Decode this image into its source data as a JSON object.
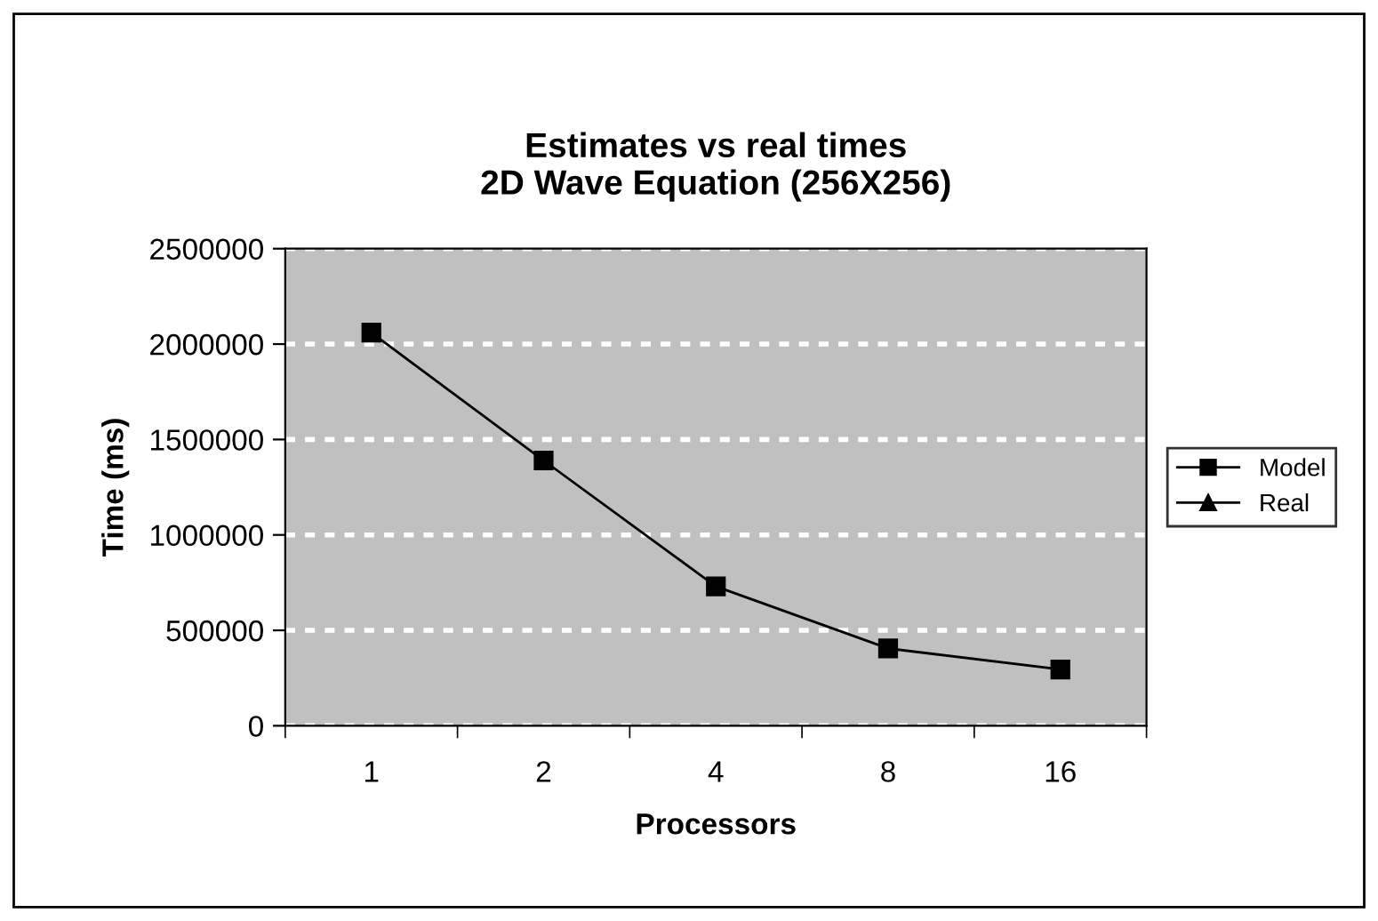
{
  "chart_data": {
    "type": "line",
    "title": "Estimates vs real times\n2D Wave Equation (256X256)",
    "xlabel": "Processors",
    "ylabel": "Time (ms)",
    "categories": [
      "1",
      "2",
      "4",
      "8",
      "16"
    ],
    "series": [
      {
        "name": "Model",
        "color": "#000000",
        "marker": "square",
        "values": [
          2060000,
          1390000,
          730000,
          405000,
          295000
        ]
      },
      {
        "name": "Real",
        "color": "#000000",
        "marker": "triangle",
        "values": [
          null,
          null,
          null,
          null,
          null
        ]
      }
    ],
    "ylim": [
      0,
      2500000
    ],
    "yticks": [
      0,
      500000,
      1000000,
      1500000,
      2000000,
      2500000
    ],
    "grid": "y",
    "legend": "right"
  }
}
